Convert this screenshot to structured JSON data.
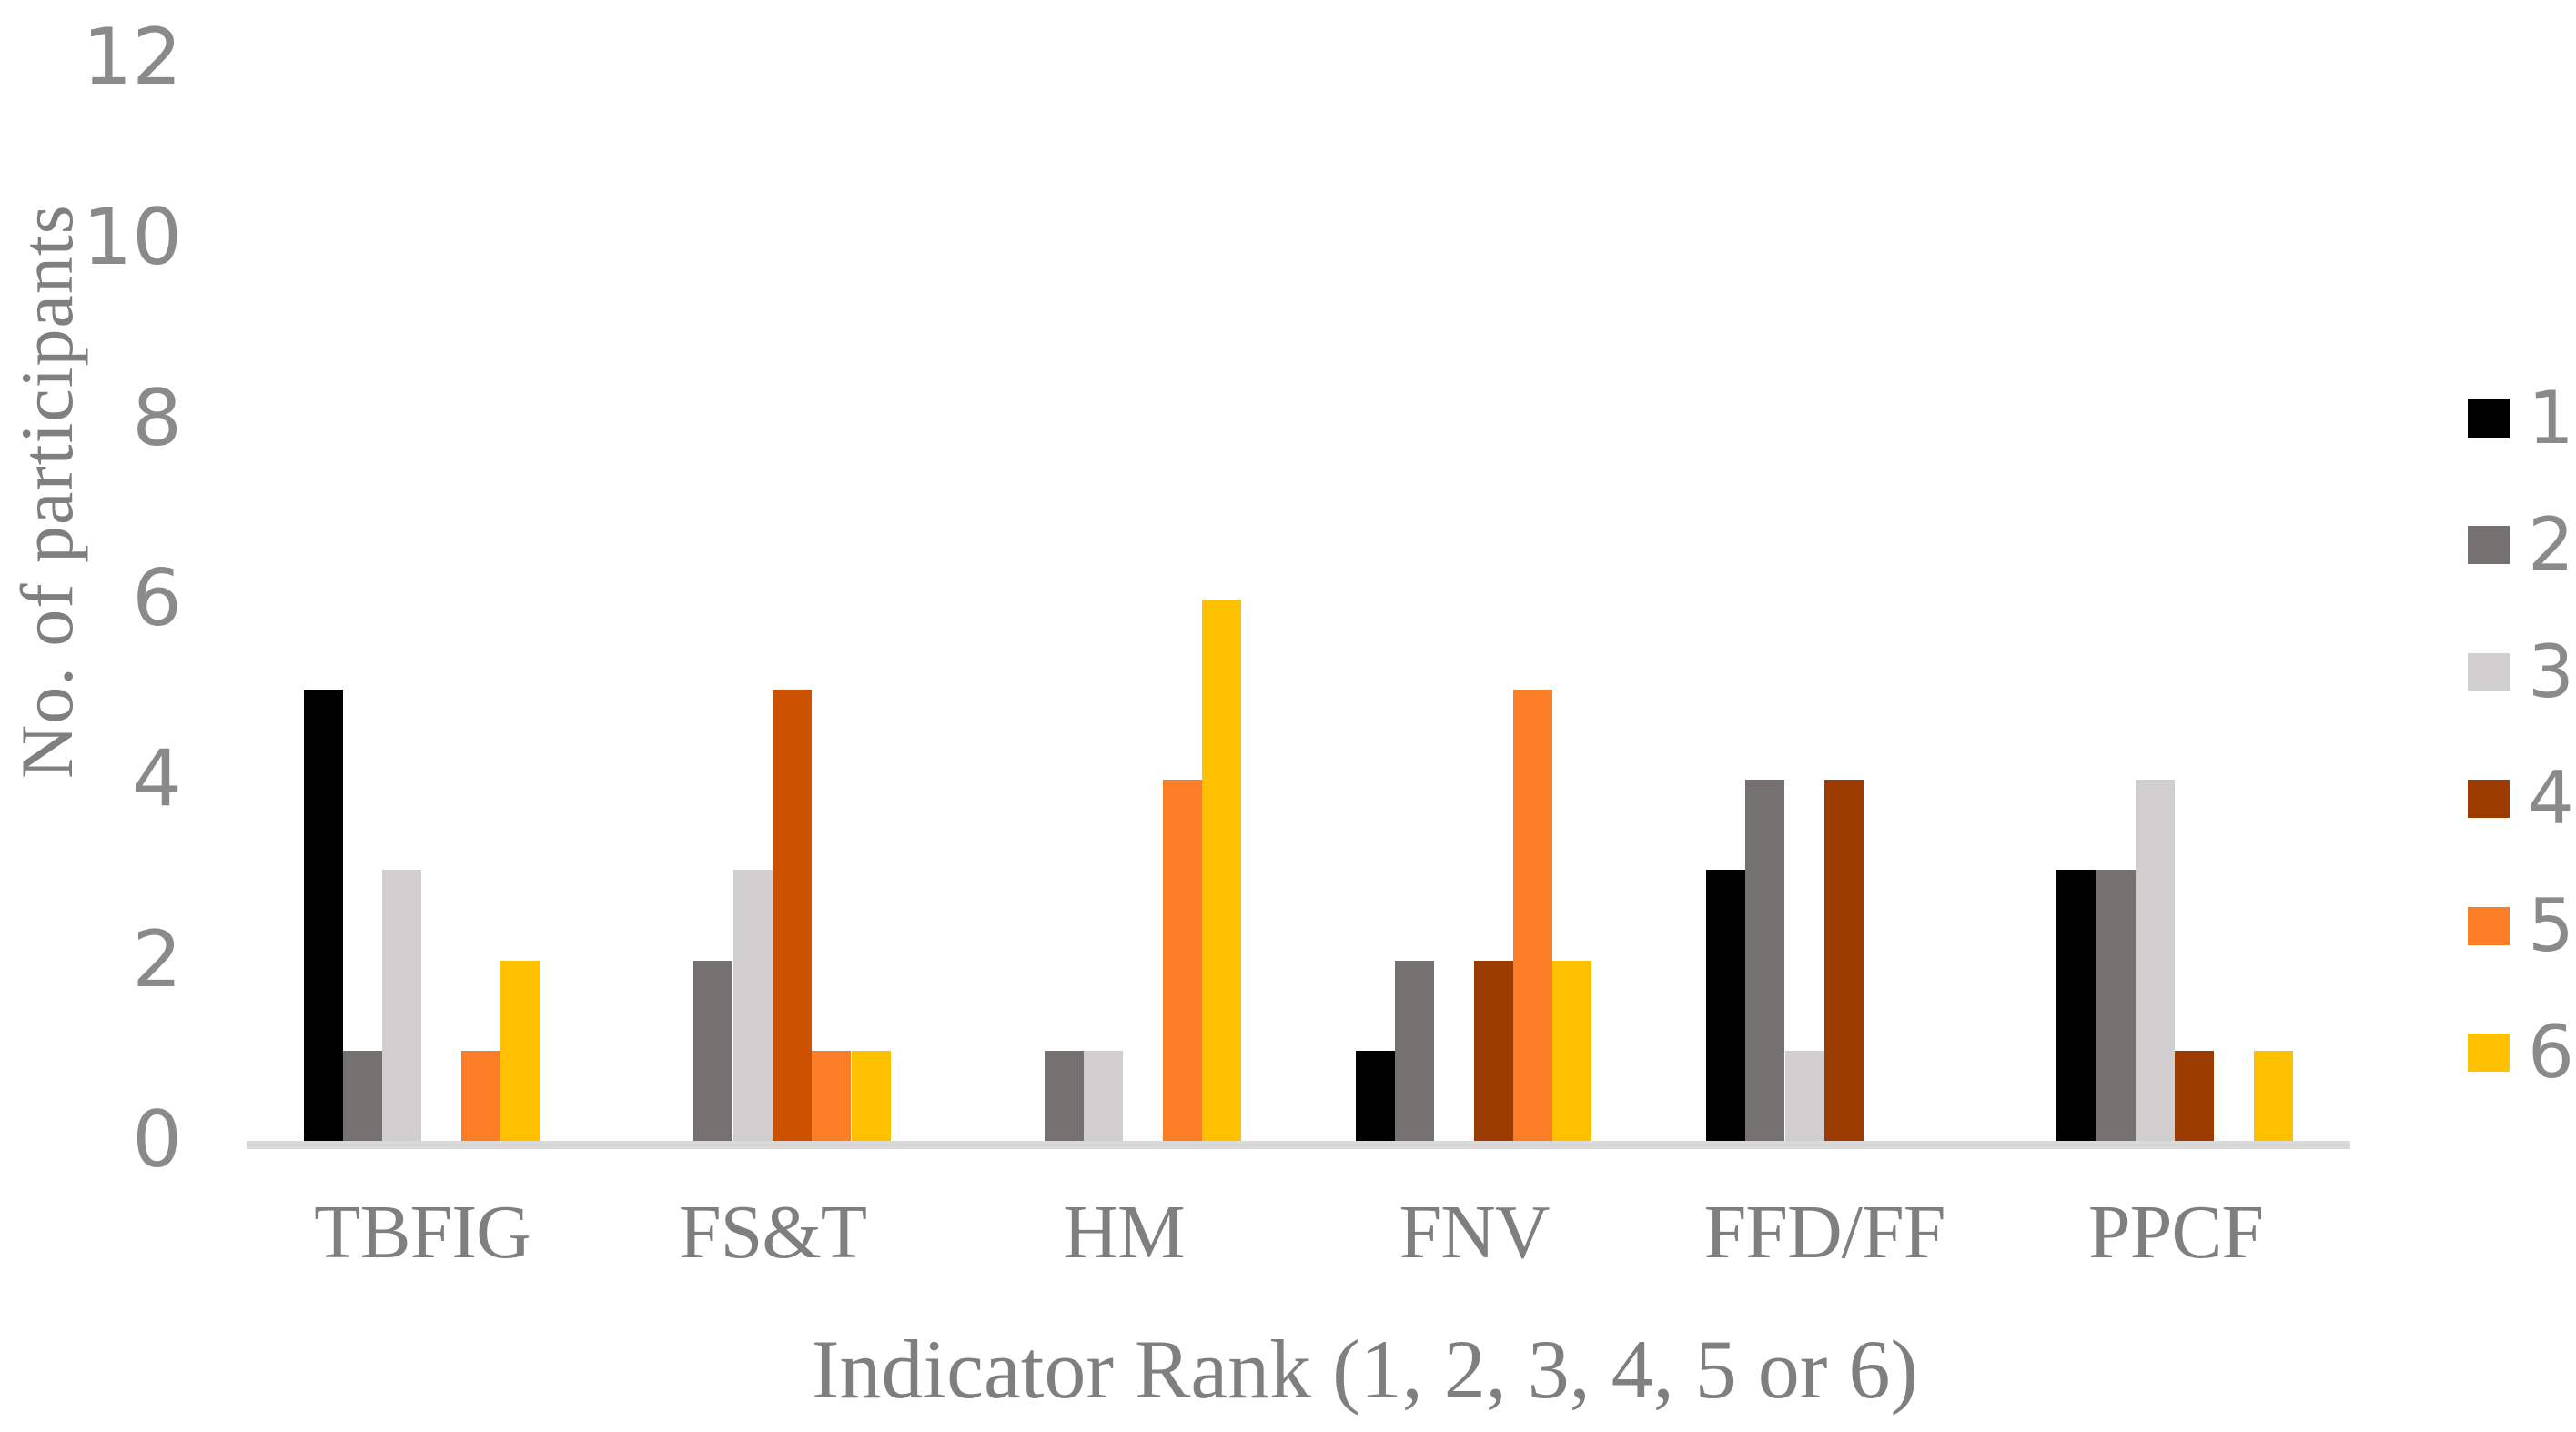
{
  "chart_data": {
    "type": "bar",
    "title": "",
    "xlabel": "Indicator Rank (1, 2, 3, 4, 5 or 6)",
    "ylabel": "No. of participants",
    "categories": [
      "TBFIG",
      "FS&T",
      "HM",
      "FNV",
      "FFD/FF",
      "PPCF"
    ],
    "series": [
      {
        "name": "1",
        "color": "#000000",
        "values": [
          5,
          0,
          0,
          1,
          3,
          3
        ]
      },
      {
        "name": "2",
        "color": "#767171",
        "values": [
          1,
          2,
          1,
          2,
          4,
          3
        ]
      },
      {
        "name": "3",
        "color": "#d0cece",
        "values": [
          3,
          3,
          1,
          0,
          1,
          4
        ]
      },
      {
        "name": "4",
        "color": "#9c3b00",
        "values": [
          0,
          5,
          0,
          2,
          4,
          1
        ]
      },
      {
        "name": "5",
        "color": "#fb7d26",
        "values": [
          1,
          1,
          4,
          5,
          0,
          0
        ]
      },
      {
        "name": "6",
        "color": "#ffc000",
        "values": [
          2,
          1,
          6,
          2,
          0,
          1
        ]
      }
    ],
    "color_overrides": [
      {
        "series": "4",
        "category": "FS&T",
        "color": "#cc5200"
      }
    ],
    "ylim": [
      0,
      12
    ],
    "yticks": [
      0,
      2,
      4,
      6,
      8,
      10,
      12
    ],
    "grid": "off",
    "legend_position": "right",
    "legend_labels": [
      "1",
      "2",
      "3",
      "4",
      "5",
      "6"
    ]
  },
  "colors": {
    "axis_text": "#8a8a8a",
    "serif_text": "#7f7f7f",
    "baseline": "#d9d9d9",
    "background": "#ffffff"
  }
}
